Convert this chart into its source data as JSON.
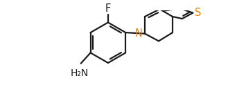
{
  "bg_color": "#ffffff",
  "line_color": "#1a1a1a",
  "N_color": "#e8820a",
  "S_color": "#e8820a",
  "F_color": "#1a1a1a",
  "lw": 1.6,
  "figsize": [
    3.29,
    1.23
  ],
  "dpi": 100,
  "xlim": [
    0,
    329
  ],
  "ylim": [
    0,
    123
  ]
}
